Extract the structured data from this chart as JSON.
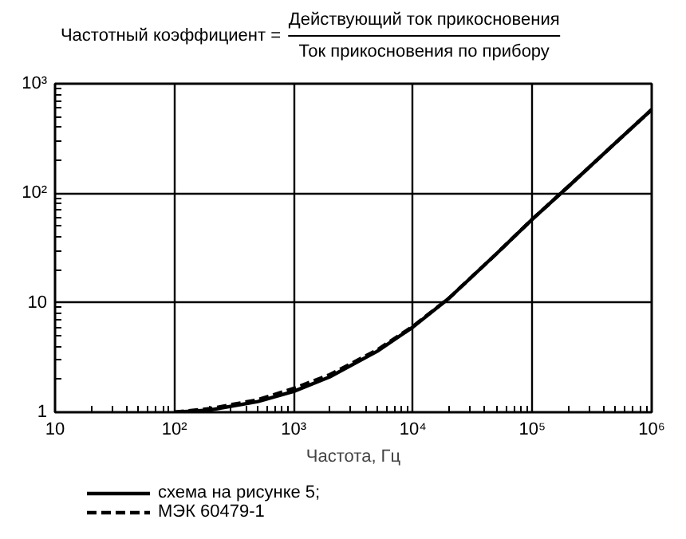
{
  "chart_data": {
    "type": "line",
    "title": "Частотный коэффициент =",
    "annotations": [
      "Действующий ток прикосновения",
      "Ток прикосновения по прибору"
    ],
    "xlabel": "Частота, Гц",
    "log": "xy",
    "grid": true,
    "legend": "bottom left",
    "marker": "none",
    "xlim": [
      10,
      1000000
    ],
    "ylim": [
      1,
      1000
    ],
    "xticks": [
      10,
      {
        "value": 100,
        "label": "10²"
      },
      {
        "value": 1000,
        "label": "10³"
      },
      {
        "value": 10000,
        "label": "10⁴"
      },
      {
        "value": 100000,
        "label": "10⁵"
      },
      {
        "value": 1000000,
        "label": "10⁶"
      }
    ],
    "yticks": [
      1,
      10,
      {
        "value": 100,
        "label": "10²"
      },
      {
        "value": 1000,
        "label": "10³"
      }
    ],
    "x": [
      100,
      200,
      500,
      1000,
      2000,
      5000,
      10000,
      20000,
      50000,
      100000,
      200000,
      500000,
      1000000
    ],
    "series": [
      {
        "name": "схема на рисунке 5;",
        "color": "#000000",
        "line_style": "solid",
        "values": [
          1.0,
          1.05,
          1.25,
          1.55,
          2.1,
          3.6,
          6,
          11,
          28,
          58,
          115,
          290,
          580
        ]
      },
      {
        "name": "МЭК 60479-1",
        "color": "#000000",
        "line_style": "dashed",
        "values": [
          1.0,
          1.08,
          1.3,
          1.65,
          2.2,
          3.7,
          6.1,
          11,
          28,
          58,
          115,
          290,
          580
        ]
      }
    ]
  }
}
